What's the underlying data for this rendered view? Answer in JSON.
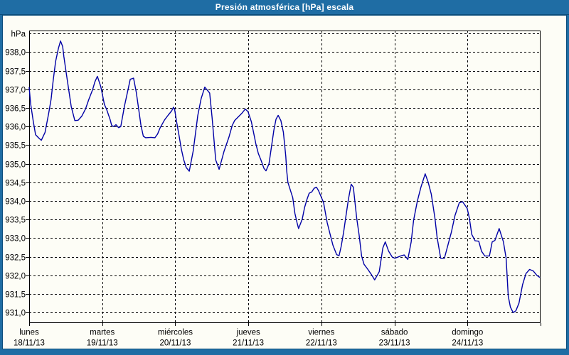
{
  "title_bar": {
    "title": "Presión atmosférica [hPa] escala"
  },
  "colors": {
    "title_bg": "#1f6da4",
    "title_text": "#ffffff",
    "frame_blue": "#1f6da4",
    "frame_dark_line": "#0b4d7b",
    "plot_background": "#fdfdf6",
    "grid_line": "#000000",
    "axis_text": "#000000",
    "series_line": "#0000a6"
  },
  "chart_data": {
    "type": "line",
    "title": "Presión atmosférica [hPa] escala",
    "grid": "dashed",
    "legend": "none",
    "y_axis": {
      "unit_label": "hPa",
      "decimal_separator": ",",
      "tick_values": [
        938.0,
        937.5,
        937.0,
        936.5,
        936.0,
        935.5,
        935.0,
        934.5,
        934.0,
        933.5,
        933.0,
        932.5,
        932.0,
        931.5,
        931.0
      ],
      "tick_labels": [
        "938,0",
        "937,5",
        "937,0",
        "936,5",
        "936,0",
        "935,5",
        "935,0",
        "934,5",
        "934,0",
        "933,5",
        "933,0",
        "932,5",
        "932,0",
        "931,5",
        "931,0"
      ],
      "top_gridline_value": 938.5,
      "ylim": [
        930.72,
        938.58
      ]
    },
    "x_axis": {
      "total_hours": 168,
      "gridline_every_hours": 24,
      "days": [
        {
          "name": "lunes",
          "date": "18/11/13"
        },
        {
          "name": "martes",
          "date": "19/11/13"
        },
        {
          "name": "miércoles",
          "date": "20/11/13"
        },
        {
          "name": "jueves",
          "date": "21/11/13"
        },
        {
          "name": "viernes",
          "date": "22/11/13"
        },
        {
          "name": "sábado",
          "date": "23/11/13"
        },
        {
          "name": "domingo",
          "date": "24/11/13"
        }
      ]
    },
    "series": [
      {
        "name": "Presión atmosférica",
        "color": "#0000a6",
        "points": [
          [
            0,
            937.05
          ],
          [
            0.5,
            936.61
          ],
          [
            1.3,
            936.16
          ],
          [
            2.1,
            935.78
          ],
          [
            3.3,
            935.68
          ],
          [
            4,
            935.63
          ],
          [
            5.2,
            935.84
          ],
          [
            6.4,
            936.35
          ],
          [
            7.2,
            936.73
          ],
          [
            7.9,
            937.24
          ],
          [
            8.7,
            937.75
          ],
          [
            9.6,
            938.1
          ],
          [
            10.3,
            938.3
          ],
          [
            11,
            938.15
          ],
          [
            11.4,
            937.88
          ],
          [
            12.2,
            937.43
          ],
          [
            13,
            936.99
          ],
          [
            13.8,
            936.54
          ],
          [
            15,
            936.16
          ],
          [
            16.1,
            936.17
          ],
          [
            17.3,
            936.28
          ],
          [
            18.5,
            936.47
          ],
          [
            19.6,
            936.73
          ],
          [
            20.8,
            936.98
          ],
          [
            21.6,
            937.2
          ],
          [
            22.4,
            937.35
          ],
          [
            23.5,
            937.08
          ],
          [
            24.1,
            936.85
          ],
          [
            24.7,
            936.6
          ],
          [
            25.5,
            936.45
          ],
          [
            26.6,
            936.19
          ],
          [
            27.1,
            936.03
          ],
          [
            27.8,
            936.0
          ],
          [
            28.5,
            936.05
          ],
          [
            29.4,
            935.97
          ],
          [
            30.1,
            936.0
          ],
          [
            31.3,
            936.55
          ],
          [
            32.5,
            937.0
          ],
          [
            33.2,
            937.27
          ],
          [
            34.3,
            937.3
          ],
          [
            35.2,
            936.92
          ],
          [
            36,
            936.45
          ],
          [
            36.7,
            936.04
          ],
          [
            37.5,
            935.74
          ],
          [
            38.3,
            935.7
          ],
          [
            40,
            935.71
          ],
          [
            41.3,
            935.7
          ],
          [
            42.2,
            935.8
          ],
          [
            43,
            935.96
          ],
          [
            44.5,
            936.18
          ],
          [
            45.7,
            936.31
          ],
          [
            46.8,
            936.42
          ],
          [
            47.4,
            936.52
          ],
          [
            47.8,
            936.45
          ],
          [
            48.4,
            936.15
          ],
          [
            49.2,
            935.77
          ],
          [
            50,
            935.39
          ],
          [
            50.8,
            935.1
          ],
          [
            51.6,
            934.9
          ],
          [
            52.6,
            934.8
          ],
          [
            53.9,
            935.35
          ],
          [
            55.4,
            936.3
          ],
          [
            56.5,
            936.75
          ],
          [
            57.7,
            937.06
          ],
          [
            58.3,
            937.0
          ],
          [
            59.3,
            936.9
          ],
          [
            60.1,
            936.24
          ],
          [
            61.3,
            935.1
          ],
          [
            62.4,
            934.85
          ],
          [
            64,
            935.33
          ],
          [
            65.6,
            935.71
          ],
          [
            66.7,
            936.03
          ],
          [
            67.5,
            936.16
          ],
          [
            68.7,
            936.26
          ],
          [
            69.8,
            936.35
          ],
          [
            71,
            936.47
          ],
          [
            71.9,
            936.4
          ],
          [
            73,
            936.13
          ],
          [
            73.7,
            935.85
          ],
          [
            74.5,
            935.53
          ],
          [
            75.3,
            935.27
          ],
          [
            76.1,
            935.11
          ],
          [
            77.1,
            934.88
          ],
          [
            77.8,
            934.81
          ],
          [
            78.8,
            935.0
          ],
          [
            79.6,
            935.46
          ],
          [
            80.4,
            935.91
          ],
          [
            81.1,
            936.2
          ],
          [
            81.8,
            936.3
          ],
          [
            82.7,
            936.16
          ],
          [
            83.5,
            935.85
          ],
          [
            83.9,
            935.53
          ],
          [
            84.3,
            935.2
          ],
          [
            84.6,
            934.81
          ],
          [
            85,
            934.5
          ],
          [
            86.6,
            934.09
          ],
          [
            87.3,
            933.67
          ],
          [
            88,
            933.42
          ],
          [
            88.5,
            933.26
          ],
          [
            89.7,
            933.51
          ],
          [
            90.5,
            933.83
          ],
          [
            91.3,
            934.05
          ],
          [
            92,
            934.21
          ],
          [
            92.8,
            934.24
          ],
          [
            93.6,
            934.34
          ],
          [
            94.4,
            934.37
          ],
          [
            95.1,
            934.27
          ],
          [
            96.7,
            933.96
          ],
          [
            97.9,
            933.42
          ],
          [
            98.7,
            933.16
          ],
          [
            99.8,
            932.81
          ],
          [
            101,
            932.56
          ],
          [
            101.8,
            932.53
          ],
          [
            102.5,
            932.78
          ],
          [
            103.3,
            933.16
          ],
          [
            104.1,
            933.61
          ],
          [
            104.9,
            934.05
          ],
          [
            105.8,
            934.45
          ],
          [
            106.5,
            934.37
          ],
          [
            107.6,
            933.54
          ],
          [
            108.4,
            933.09
          ],
          [
            109.2,
            932.52
          ],
          [
            110,
            932.3
          ],
          [
            111.2,
            932.17
          ],
          [
            112.3,
            932.04
          ],
          [
            113.5,
            931.88
          ],
          [
            115,
            932.1
          ],
          [
            116.2,
            932.74
          ],
          [
            117,
            932.9
          ],
          [
            118.1,
            932.65
          ],
          [
            119.3,
            932.49
          ],
          [
            120.1,
            932.46
          ],
          [
            122,
            932.52
          ],
          [
            123.2,
            932.55
          ],
          [
            124.4,
            932.43
          ],
          [
            125.5,
            932.9
          ],
          [
            126.3,
            933.48
          ],
          [
            127.5,
            933.99
          ],
          [
            128.7,
            934.37
          ],
          [
            130.1,
            934.73
          ],
          [
            131.1,
            934.5
          ],
          [
            132.1,
            934.18
          ],
          [
            133.3,
            933.54
          ],
          [
            134,
            933.03
          ],
          [
            135.2,
            932.46
          ],
          [
            136.4,
            932.46
          ],
          [
            138.7,
            933.16
          ],
          [
            139.9,
            933.61
          ],
          [
            141.3,
            933.95
          ],
          [
            142.4,
            933.98
          ],
          [
            143.9,
            933.8
          ],
          [
            144.6,
            933.54
          ],
          [
            145.4,
            933.1
          ],
          [
            146.5,
            932.93
          ],
          [
            147.7,
            932.92
          ],
          [
            148.6,
            932.65
          ],
          [
            149.7,
            932.52
          ],
          [
            151.2,
            932.52
          ],
          [
            152.1,
            932.9
          ],
          [
            153,
            932.94
          ],
          [
            154.4,
            933.26
          ],
          [
            155.8,
            932.9
          ],
          [
            156.7,
            932.46
          ],
          [
            157.4,
            931.44
          ],
          [
            158.1,
            931.15
          ],
          [
            159,
            931.0
          ],
          [
            159.9,
            931.05
          ],
          [
            160.9,
            931.25
          ],
          [
            162.1,
            931.75
          ],
          [
            163.2,
            932.05
          ],
          [
            164.4,
            932.16
          ],
          [
            165.6,
            932.12
          ],
          [
            166.8,
            932.0
          ],
          [
            167.7,
            931.95
          ]
        ]
      }
    ]
  }
}
